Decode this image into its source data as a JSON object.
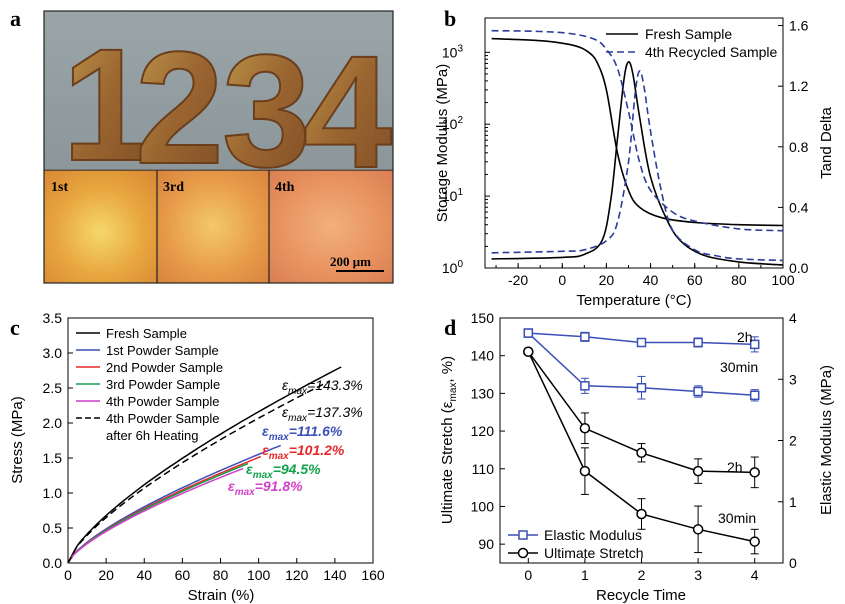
{
  "panels": {
    "a": {
      "label": "a",
      "digits": [
        "1",
        "2",
        "3",
        "4"
      ],
      "micro_labels": [
        "1st",
        "3rd",
        "4th"
      ],
      "scale_bar": "200 μm"
    },
    "b": {
      "label": "b"
    },
    "c": {
      "label": "c"
    },
    "d": {
      "label": "d"
    }
  },
  "chart_data": [
    {
      "id": "b",
      "type": "line",
      "xlabel": "Temperature (°C)",
      "ylabel": "Storage Modulus (MPa)",
      "y2label": "Tand Delta",
      "xlim": [
        -35,
        100
      ],
      "ylim": [
        1,
        3000
      ],
      "yscale": "log",
      "y2lim": [
        0,
        1.65
      ],
      "xticks": [
        "-20",
        "0",
        "20",
        "40",
        "60",
        "80",
        "100"
      ],
      "xtick_values": [
        -20,
        0,
        20,
        40,
        60,
        80,
        100
      ],
      "yticks": [
        "10^0",
        "10^1",
        "10^2",
        "10^3"
      ],
      "y2ticks": [
        "0.0",
        "0.4",
        "0.8",
        "1.2",
        "1.6"
      ],
      "y2tick_values": [
        0.0,
        0.4,
        0.8,
        1.2,
        1.6
      ],
      "legend": "top-right",
      "series": [
        {
          "name": "Fresh Sample",
          "color": "#000000",
          "dash": "solid",
          "modulus": {
            "x": [
              -32,
              -10,
              5,
              12,
              16,
              20,
              25,
              30,
              35,
              45,
              60,
              80,
              100
            ],
            "y": [
              1550,
              1450,
              1250,
              1000,
              700,
              300,
              40,
              12,
              7,
              5,
              4.3,
              4.0,
              3.9
            ]
          },
          "tan": {
            "x": [
              -32,
              0,
              10,
              18,
              22,
              25,
              28,
              30,
              32,
              35,
              40,
              48,
              55,
              65,
              80,
              100
            ],
            "y": [
              0.06,
              0.07,
              0.09,
              0.18,
              0.45,
              0.85,
              1.25,
              1.36,
              1.28,
              1.0,
              0.6,
              0.3,
              0.16,
              0.08,
              0.04,
              0.02
            ]
          }
        },
        {
          "name": "4th Recycled Sample",
          "color": "#2b3d9a",
          "dash": "dashed",
          "modulus": {
            "x": [
              -32,
              -10,
              5,
              15,
              20,
              25,
              30,
              35,
              40,
              50,
              60,
              80,
              100
            ],
            "y": [
              2000,
              1950,
              1800,
              1500,
              1100,
              600,
              150,
              30,
              12,
              6,
              4.5,
              3.5,
              3.3
            ]
          },
          "tan": {
            "x": [
              -32,
              0,
              10,
              20,
              25,
              30,
              33,
              35,
              37,
              40,
              45,
              50,
              60,
              70,
              80,
              100
            ],
            "y": [
              0.1,
              0.11,
              0.12,
              0.18,
              0.3,
              0.7,
              1.15,
              1.3,
              1.2,
              0.9,
              0.5,
              0.25,
              0.12,
              0.08,
              0.06,
              0.05
            ]
          }
        }
      ]
    },
    {
      "id": "c",
      "type": "line",
      "xlabel": "Strain (%)",
      "ylabel": "Stress (MPa)",
      "xlim": [
        0,
        160
      ],
      "ylim": [
        0,
        3.5
      ],
      "xticks": [
        "0",
        "20",
        "40",
        "60",
        "80",
        "100",
        "120",
        "140",
        "160"
      ],
      "xtick_values": [
        0,
        20,
        40,
        60,
        80,
        100,
        120,
        140,
        160
      ],
      "yticks": [
        "0.0",
        "0.5",
        "1.0",
        "1.5",
        "2.0",
        "2.5",
        "3.0",
        "3.5"
      ],
      "ytick_values": [
        0,
        0.5,
        1.0,
        1.5,
        2.0,
        2.5,
        3.0,
        3.5
      ],
      "legend": "top-left",
      "series": [
        {
          "name": "Fresh Sample",
          "color": "#000000",
          "dash": "solid",
          "end_x": 143.3,
          "end_y": 2.8
        },
        {
          "name": "1st Powder Sample",
          "color": "#3b4fb8",
          "dash": "solid",
          "end_x": 111.6,
          "end_y": 1.68
        },
        {
          "name": "2nd Powder Sample",
          "color": "#e8272a",
          "dash": "solid",
          "end_x": 101.2,
          "end_y": 1.52
        },
        {
          "name": "3rd Powder Sample",
          "color": "#12a14a",
          "dash": "solid",
          "end_x": 94.5,
          "end_y": 1.42
        },
        {
          "name": "4th Powder Sample",
          "color": "#d23fc8",
          "dash": "solid",
          "end_x": 91.8,
          "end_y": 1.35
        },
        {
          "name": "4th Powder Sample",
          "name2": "after 6h Heating",
          "color": "#000000",
          "dash": "dashed",
          "end_x": 137.3,
          "end_y": 2.6
        }
      ],
      "annotations": [
        {
          "text": "=143.3%",
          "color": "#000000"
        },
        {
          "text": "=137.3%",
          "color": "#000000"
        },
        {
          "text": "=111.6%",
          "color": "#3b4fb8"
        },
        {
          "text": "=101.2%",
          "color": "#e8272a"
        },
        {
          "text": "=94.5%",
          "color": "#12a14a"
        },
        {
          "text": "=91.8%",
          "color": "#d23fc8"
        }
      ],
      "epsilon_symbol": "ε",
      "epsilon_sub": "max"
    },
    {
      "id": "d",
      "type": "line",
      "xlabel": "Recycle Time",
      "ylabel": "Ultimate Stretch (ε",
      "ylabel_sub": "max",
      "ylabel_tail": ", %)",
      "y2label": "Elastic Modulus (MPa)",
      "xlim": [
        -0.5,
        4.5
      ],
      "ylim": [
        85,
        150
      ],
      "y2lim": [
        0,
        4
      ],
      "xticks": [
        "0",
        "1",
        "2",
        "3",
        "4"
      ],
      "xtick_values": [
        0,
        1,
        2,
        3,
        4
      ],
      "yticks": [
        "90",
        "100",
        "110",
        "120",
        "130",
        "140",
        "150"
      ],
      "ytick_values": [
        90,
        100,
        110,
        120,
        130,
        140,
        150
      ],
      "y2ticks": [
        "0",
        "1",
        "2",
        "3",
        "4"
      ],
      "y2tick_values": [
        0,
        1,
        2,
        3,
        4
      ],
      "legend": "bottom-left",
      "legend_entries": [
        "Elastic Modulus",
        "Ultimate Stretch"
      ],
      "series": [
        {
          "name": "Elastic Modulus",
          "group": "2h",
          "axis": "y",
          "color": "#3b4fb8",
          "marker": "square",
          "x": [
            0,
            1,
            2,
            3,
            4
          ],
          "y": [
            146,
            145,
            143.5,
            143.5,
            143
          ],
          "err": [
            0,
            1.2,
            1.0,
            1.2,
            2.0
          ]
        },
        {
          "name": "Elastic Modulus",
          "group": "30min",
          "axis": "y",
          "color": "#3b4fb8",
          "marker": "square",
          "x": [
            0,
            1,
            2,
            3,
            4
          ],
          "y": [
            146,
            132,
            131.5,
            130.5,
            129.5
          ],
          "err": [
            0,
            2.0,
            3.0,
            1.5,
            1.5
          ]
        },
        {
          "name": "Ultimate Stretch",
          "group": "2h",
          "axis": "y2",
          "color": "#000000",
          "marker": "circle",
          "x": [
            0,
            1,
            2,
            3,
            4
          ],
          "y": [
            3.45,
            2.2,
            1.8,
            1.5,
            1.48
          ],
          "err": [
            0,
            0.25,
            0.15,
            0.2,
            0.25
          ]
        },
        {
          "name": "Ultimate Stretch",
          "group": "30min",
          "axis": "y2",
          "color": "#000000",
          "marker": "circle",
          "x": [
            0,
            1,
            2,
            3,
            4
          ],
          "y": [
            3.45,
            1.5,
            0.8,
            0.55,
            0.35
          ],
          "err": [
            0,
            0.38,
            0.25,
            0.38,
            0.2
          ]
        }
      ],
      "group_labels": [
        "2h",
        "30min",
        "2h",
        "30min"
      ]
    }
  ]
}
